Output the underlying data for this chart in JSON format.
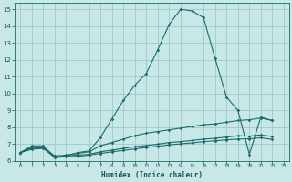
{
  "xlabel": "Humidex (Indice chaleur)",
  "ylabel": "",
  "xlim": [
    -0.5,
    23.5
  ],
  "ylim": [
    6.0,
    15.4
  ],
  "yticks": [
    6,
    7,
    8,
    9,
    10,
    11,
    12,
    13,
    14,
    15
  ],
  "xticks": [
    0,
    1,
    2,
    3,
    4,
    5,
    6,
    7,
    8,
    9,
    10,
    11,
    12,
    13,
    14,
    15,
    16,
    17,
    18,
    19,
    20,
    21,
    22,
    23
  ],
  "background_color": "#c8e8e8",
  "grid_color": "#a0c8c8",
  "line_color": "#1a6b6b",
  "lines": [
    {
      "x": [
        0,
        1,
        2,
        3,
        4,
        5,
        6,
        7,
        8,
        9,
        10,
        11,
        12,
        13,
        14,
        15,
        16,
        17,
        18,
        19,
        20,
        21,
        22
      ],
      "y": [
        6.5,
        6.9,
        6.9,
        6.2,
        6.3,
        6.5,
        6.6,
        7.4,
        8.5,
        9.6,
        10.5,
        11.2,
        12.6,
        14.1,
        15.0,
        14.9,
        14.5,
        12.1,
        9.8,
        9.0,
        6.4,
        8.6,
        8.4
      ]
    },
    {
      "x": [
        0,
        1,
        2,
        3,
        4,
        5,
        6,
        7,
        8,
        9,
        10,
        11,
        12,
        13,
        14,
        15,
        16,
        17,
        18,
        19,
        20,
        21,
        22
      ],
      "y": [
        6.5,
        6.8,
        6.85,
        6.3,
        6.35,
        6.45,
        6.55,
        6.9,
        7.1,
        7.3,
        7.5,
        7.65,
        7.75,
        7.85,
        7.95,
        8.05,
        8.15,
        8.2,
        8.3,
        8.4,
        8.45,
        8.55,
        8.4
      ]
    },
    {
      "x": [
        0,
        1,
        2,
        3,
        4,
        5,
        6,
        7,
        8,
        9,
        10,
        11,
        12,
        13,
        14,
        15,
        16,
        17,
        18,
        19,
        20,
        21,
        22
      ],
      "y": [
        6.5,
        6.75,
        6.8,
        6.25,
        6.3,
        6.35,
        6.4,
        6.55,
        6.65,
        6.75,
        6.85,
        6.92,
        7.0,
        7.1,
        7.15,
        7.22,
        7.3,
        7.35,
        7.42,
        7.5,
        7.48,
        7.55,
        7.45
      ]
    },
    {
      "x": [
        0,
        1,
        2,
        3,
        4,
        5,
        6,
        7,
        8,
        9,
        10,
        11,
        12,
        13,
        14,
        15,
        16,
        17,
        18,
        19,
        20,
        21,
        22
      ],
      "y": [
        6.5,
        6.7,
        6.75,
        6.22,
        6.25,
        6.28,
        6.35,
        6.45,
        6.55,
        6.63,
        6.72,
        6.8,
        6.88,
        6.96,
        7.02,
        7.08,
        7.15,
        7.2,
        7.26,
        7.3,
        7.32,
        7.38,
        7.28
      ]
    }
  ]
}
